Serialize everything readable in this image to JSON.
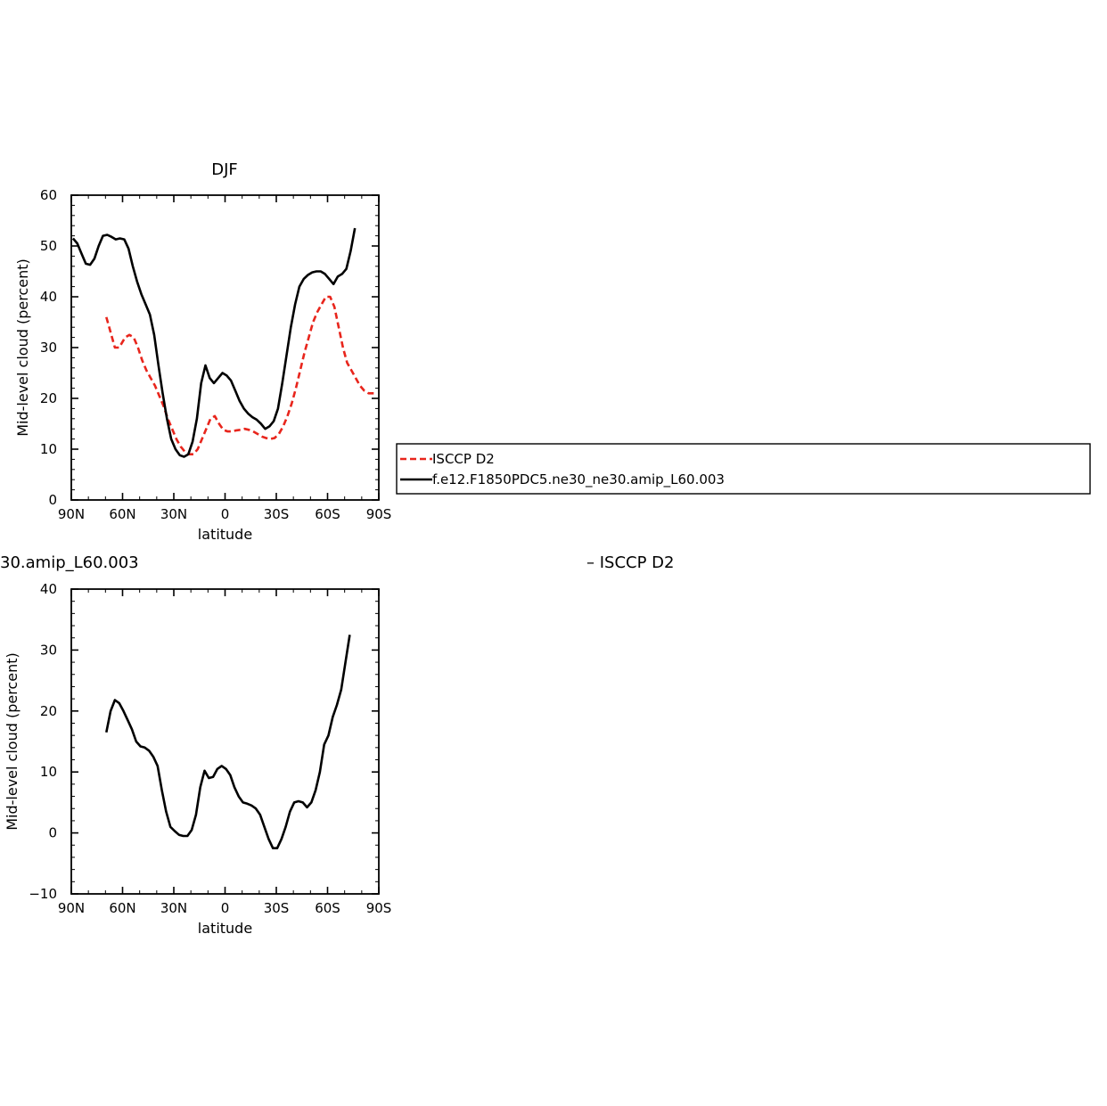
{
  "chart_data": [
    {
      "type": "line",
      "title": "DJF",
      "xlabel": "latitude",
      "ylabel": "Mid-level cloud (percent)",
      "xlim": [
        90,
        -90
      ],
      "ylim": [
        0,
        60
      ],
      "x_ticks": [
        {
          "value": 90,
          "label": "90N"
        },
        {
          "value": 60,
          "label": "60N"
        },
        {
          "value": 30,
          "label": "30N"
        },
        {
          "value": 0,
          "label": "0"
        },
        {
          "value": -30,
          "label": "30S"
        },
        {
          "value": -60,
          "label": "60S"
        },
        {
          "value": -90,
          "label": "90S"
        }
      ],
      "y_ticks": [
        0,
        10,
        20,
        30,
        40,
        50,
        60
      ],
      "series": [
        {
          "name": "ISCCP D2",
          "color": "#e8251c",
          "dash": true,
          "points": [
            [
              69.5,
              36
            ],
            [
              67,
              33
            ],
            [
              64.5,
              30
            ],
            [
              62,
              30
            ],
            [
              58.5,
              32
            ],
            [
              56,
              32.5
            ],
            [
              53.5,
              32
            ],
            [
              51,
              30
            ],
            [
              48.5,
              27.5
            ],
            [
              46,
              25.5
            ],
            [
              43.5,
              24
            ],
            [
              41,
              22.5
            ],
            [
              38.5,
              20.5
            ],
            [
              36,
              18.5
            ],
            [
              33.5,
              16
            ],
            [
              31,
              14
            ],
            [
              28.5,
              12
            ],
            [
              26,
              10.5
            ],
            [
              23.5,
              9.5
            ],
            [
              21,
              9
            ],
            [
              18.5,
              9
            ],
            [
              16,
              10
            ],
            [
              13.5,
              12
            ],
            [
              11,
              14
            ],
            [
              8.5,
              16
            ],
            [
              6,
              16.5
            ],
            [
              3.5,
              15
            ],
            [
              1,
              13.8
            ],
            [
              -1.5,
              13.5
            ],
            [
              -4,
              13.5
            ],
            [
              -6.5,
              13.7
            ],
            [
              -9,
              13.8
            ],
            [
              -11.5,
              14
            ],
            [
              -14,
              13.8
            ],
            [
              -16.5,
              13.5
            ],
            [
              -19,
              13
            ],
            [
              -21.5,
              12.5
            ],
            [
              -24,
              12.2
            ],
            [
              -26.5,
              12
            ],
            [
              -29,
              12.2
            ],
            [
              -31.5,
              13
            ],
            [
              -34,
              14.5
            ],
            [
              -36.5,
              16.5
            ],
            [
              -39,
              19
            ],
            [
              -41.5,
              22
            ],
            [
              -44,
              25.5
            ],
            [
              -46.5,
              29
            ],
            [
              -49,
              32
            ],
            [
              -51.5,
              35
            ],
            [
              -54,
              37
            ],
            [
              -56.5,
              38.5
            ],
            [
              -59,
              40
            ],
            [
              -61.5,
              40
            ],
            [
              -64,
              38
            ],
            [
              -66.5,
              34
            ],
            [
              -69,
              30
            ],
            [
              -71.5,
              27
            ],
            [
              -74,
              25.5
            ],
            [
              -76.5,
              24
            ],
            [
              -79,
              22.5
            ],
            [
              -81.5,
              21.5
            ],
            [
              -84,
              21
            ],
            [
              -86.5,
              21
            ],
            [
              -89,
              21
            ]
          ]
        },
        {
          "name": "f.e12.F1850PDC5.ne30_ne30.amip_L60.003",
          "color": "#000000",
          "dash": false,
          "points": [
            [
              89,
              51.5
            ],
            [
              86.5,
              50.5
            ],
            [
              84,
              48.5
            ],
            [
              81.5,
              46.5
            ],
            [
              79,
              46.3
            ],
            [
              76.5,
              47.5
            ],
            [
              74,
              50
            ],
            [
              71.5,
              52
            ],
            [
              69,
              52.2
            ],
            [
              66.5,
              51.8
            ],
            [
              64,
              51.3
            ],
            [
              61.5,
              51.5
            ],
            [
              59,
              51.3
            ],
            [
              56.5,
              49.5
            ],
            [
              54,
              46
            ],
            [
              51.5,
              43
            ],
            [
              49,
              40.5
            ],
            [
              46.5,
              38.5
            ],
            [
              44,
              36.5
            ],
            [
              41.5,
              32.5
            ],
            [
              39,
              26.5
            ],
            [
              36.5,
              21
            ],
            [
              34,
              16
            ],
            [
              31.5,
              12
            ],
            [
              29,
              10
            ],
            [
              26.5,
              8.8
            ],
            [
              24,
              8.5
            ],
            [
              21.5,
              9
            ],
            [
              19,
              11.5
            ],
            [
              16.5,
              16
            ],
            [
              14,
              23
            ],
            [
              11.5,
              26.5
            ],
            [
              9,
              24
            ],
            [
              6.5,
              23
            ],
            [
              4,
              24
            ],
            [
              1.5,
              25
            ],
            [
              -1,
              24.5
            ],
            [
              -3.5,
              23.5
            ],
            [
              -6,
              21.5
            ],
            [
              -8.5,
              19.5
            ],
            [
              -11,
              18
            ],
            [
              -13.5,
              17
            ],
            [
              -16,
              16.3
            ],
            [
              -18.5,
              15.8
            ],
            [
              -21,
              15
            ],
            [
              -23.5,
              14
            ],
            [
              -26,
              14.5
            ],
            [
              -28.5,
              15.5
            ],
            [
              -31,
              18
            ],
            [
              -33.5,
              23
            ],
            [
              -36,
              28.5
            ],
            [
              -38.5,
              34
            ],
            [
              -41,
              38.5
            ],
            [
              -43.5,
              42
            ],
            [
              -46,
              43.5
            ],
            [
              -48.5,
              44.3
            ],
            [
              -51,
              44.8
            ],
            [
              -53.5,
              45
            ],
            [
              -56,
              45
            ],
            [
              -58.5,
              44.5
            ],
            [
              -61,
              43.5
            ],
            [
              -63.5,
              42.5
            ],
            [
              -66,
              44
            ],
            [
              -68.5,
              44.5
            ],
            [
              -71,
              45.5
            ],
            [
              -73.5,
              49
            ],
            [
              -76,
              53.5
            ]
          ]
        }
      ]
    },
    {
      "type": "line",
      "title": "30.amip_L60.003",
      "title_right": "– ISCCP D2",
      "xlabel": "latitude",
      "ylabel": "Mid-level cloud (percent)",
      "xlim": [
        90,
        -90
      ],
      "ylim": [
        -10,
        40
      ],
      "x_ticks": [
        {
          "value": 90,
          "label": "90N"
        },
        {
          "value": 60,
          "label": "60N"
        },
        {
          "value": 30,
          "label": "30N"
        },
        {
          "value": 0,
          "label": "0"
        },
        {
          "value": -30,
          "label": "30S"
        },
        {
          "value": -60,
          "label": "60S"
        },
        {
          "value": -90,
          "label": "90S"
        }
      ],
      "y_ticks": [
        -10,
        0,
        10,
        20,
        30,
        40
      ],
      "y_tick_labels": [
        "−10",
        "0",
        "10",
        "20",
        "30",
        "40"
      ],
      "series": [
        {
          "color": "#000000",
          "dash": false,
          "points": [
            [
              69.5,
              16.5
            ],
            [
              67,
              20
            ],
            [
              64.5,
              21.8
            ],
            [
              62,
              21.3
            ],
            [
              59.5,
              20
            ],
            [
              57,
              18.5
            ],
            [
              54.5,
              17
            ],
            [
              52,
              15
            ],
            [
              49.5,
              14.2
            ],
            [
              47,
              14
            ],
            [
              44.5,
              13.5
            ],
            [
              42,
              12.5
            ],
            [
              39.5,
              11
            ],
            [
              37,
              7
            ],
            [
              34.5,
              3.5
            ],
            [
              32,
              1
            ],
            [
              29.5,
              0.3
            ],
            [
              27,
              -0.3
            ],
            [
              24.5,
              -0.5
            ],
            [
              22,
              -0.5
            ],
            [
              19.5,
              0.5
            ],
            [
              17,
              3
            ],
            [
              14.5,
              7.5
            ],
            [
              12,
              10.2
            ],
            [
              9.5,
              9
            ],
            [
              7,
              9.2
            ],
            [
              4.5,
              10.5
            ],
            [
              2,
              11
            ],
            [
              -0.5,
              10.5
            ],
            [
              -3,
              9.5
            ],
            [
              -5.5,
              7.5
            ],
            [
              -8,
              6
            ],
            [
              -10.5,
              5
            ],
            [
              -13,
              4.8
            ],
            [
              -15.5,
              4.5
            ],
            [
              -18,
              4
            ],
            [
              -20.5,
              3
            ],
            [
              -23,
              1
            ],
            [
              -25.5,
              -1
            ],
            [
              -28,
              -2.5
            ],
            [
              -30.5,
              -2.5
            ],
            [
              -33,
              -1
            ],
            [
              -35.5,
              1
            ],
            [
              -38,
              3.5
            ],
            [
              -40.5,
              5
            ],
            [
              -43,
              5.2
            ],
            [
              -45.5,
              5
            ],
            [
              -48,
              4.2
            ],
            [
              -50.5,
              5
            ],
            [
              -53,
              7
            ],
            [
              -55.5,
              10
            ],
            [
              -58,
              14.5
            ],
            [
              -60.5,
              16
            ],
            [
              -63,
              19
            ],
            [
              -65.5,
              21
            ],
            [
              -68,
              23.5
            ],
            [
              -70.5,
              28
            ],
            [
              -73,
              32.5
            ]
          ]
        }
      ]
    }
  ],
  "legend": {
    "entries": [
      {
        "label": "ISCCP D2",
        "color": "#e8251c",
        "dash": true
      },
      {
        "label": "f.e12.F1850PDC5.ne30_ne30.amip_L60.003",
        "color": "#000000",
        "dash": false
      }
    ]
  }
}
